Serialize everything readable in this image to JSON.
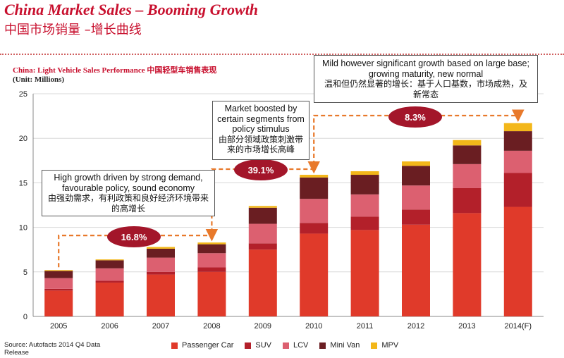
{
  "title": "China Market Sales – Booming Growth",
  "title_cn": "中国市场销量 –增长曲线",
  "source": "Source: Autofacts 2014 Q4 Data Release",
  "colors": {
    "Passenger Car": "#e03a2a",
    "SUV": "#b3202a",
    "LCV": "#dc6070",
    "Mini Van": "#6a1e22",
    "MPV": "#f3b71a",
    "accent": "#c8102e",
    "arrow": "#e8792b",
    "badge": "#a3162a"
  },
  "callouts": [
    {
      "en": "High growth driven by strong demand, favourable policy, sound economy",
      "cn": "由强劲需求，有利政策和良好经济环境带来的高增长"
    },
    {
      "en": "Market boosted by certain segments from policy stimulus",
      "cn": "由部分领域政策刺激带来的市场增长高峰"
    },
    {
      "en": "Mild however significant growth based on large base; growing maturity, new normal",
      "cn": "温和但仍然显著的增长：基于人口基数，市场成熟，及新常态"
    }
  ],
  "badges": [
    "16.8%",
    "39.1%",
    "8.3%"
  ],
  "chart_data": {
    "type": "bar",
    "stacked": true,
    "title": "China: Light Vehicle Sales Performance 中国轻型车销售表现",
    "ylabel": "(Unit: Millions)",
    "xlabel": "",
    "ylim": [
      0,
      25
    ],
    "yticks": [
      0,
      5,
      10,
      15,
      20,
      25
    ],
    "grid": true,
    "legend": "bottom",
    "categories": [
      "2005",
      "2006",
      "2007",
      "2008",
      "2009",
      "2010",
      "2011",
      "2012",
      "2013",
      "2014(F)"
    ],
    "series": [
      {
        "name": "Passenger Car",
        "values": [
          2.9,
          3.8,
          4.7,
          5.0,
          7.5,
          9.3,
          9.7,
          10.3,
          11.6,
          12.3
        ]
      },
      {
        "name": "SUV",
        "values": [
          0.2,
          0.2,
          0.3,
          0.5,
          0.7,
          1.2,
          1.5,
          1.7,
          2.8,
          3.8
        ]
      },
      {
        "name": "LCV",
        "values": [
          1.2,
          1.4,
          1.6,
          1.6,
          2.2,
          2.7,
          2.5,
          2.7,
          2.7,
          2.5
        ]
      },
      {
        "name": "Mini Van",
        "values": [
          0.8,
          0.9,
          1.0,
          1.0,
          1.8,
          2.4,
          2.2,
          2.2,
          2.1,
          2.2
        ]
      },
      {
        "name": "MPV",
        "values": [
          0.1,
          0.1,
          0.2,
          0.2,
          0.2,
          0.3,
          0.4,
          0.5,
          0.6,
          0.9
        ]
      }
    ]
  }
}
